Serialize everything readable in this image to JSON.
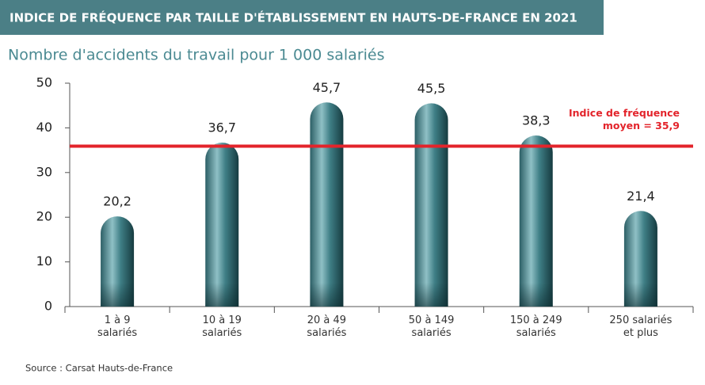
{
  "chart_data": {
    "type": "bar",
    "title": "INDICE DE FRÉQUENCE PAR TAILLE D'ÉTABLISSEMENT EN HAUTS-DE-FRANCE EN 2021",
    "subtitle": "Nombre d'accidents du travail pour 1 000 salariés",
    "categories": [
      "1 à 9\nsalariés",
      "10 à 19\nsalariés",
      "20 à 49\nsalariés",
      "50 à 149\nsalariés",
      "150 à 249\nsalariés",
      "250 salariés\net plus"
    ],
    "values": [
      20.2,
      36.7,
      45.7,
      45.5,
      38.3,
      21.4
    ],
    "value_labels": [
      "20,2",
      "36,7",
      "45,7",
      "45,5",
      "38,3",
      "21,4"
    ],
    "color": "#3f7f86",
    "ylim": [
      0,
      50
    ],
    "yticks": [
      0,
      10,
      20,
      30,
      40,
      50
    ],
    "reference_line": {
      "value": 35.9,
      "label": "Indice de fréquence\nmoyen = 35,9",
      "color": "#e3242b"
    },
    "source": "Source : Carsat Hauts-de-France"
  }
}
